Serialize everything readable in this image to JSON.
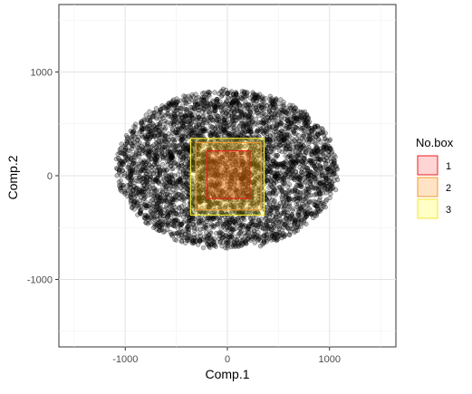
{
  "chart_data": {
    "type": "scatter",
    "title": "",
    "xlabel": "Comp.1",
    "ylabel": "Comp.2",
    "xlim": [
      -1650,
      1650
    ],
    "ylim": [
      -1650,
      1650
    ],
    "x_ticks": [
      -1000,
      0,
      1000
    ],
    "y_ticks": [
      -1000,
      0,
      1000
    ],
    "x_tick_labels": [
      "-1000",
      "0",
      "1000"
    ],
    "y_tick_labels": [
      "-1000",
      "0",
      "1000"
    ],
    "grid": true,
    "legend_position": "right",
    "point_color": "#000000",
    "point_fill_opacity": 0.25,
    "point_cloud": {
      "description_hidden": true,
      "n_points": 4200,
      "center": [
        0,
        80
      ],
      "x_range": [
        -1150,
        1100
      ],
      "y_range": [
        -950,
        870
      ],
      "seed": 7
    },
    "boxes": [
      {
        "name": "1",
        "xmin": -200,
        "xmax": 220,
        "ymin": -220,
        "ymax": 240,
        "fill": "#ff0000",
        "stroke": "#e8211c",
        "fill_opacity": 0.18
      },
      {
        "name": "2",
        "xmin": -310,
        "xmax": 330,
        "ymin": -330,
        "ymax": 320,
        "fill": "#ff8c00",
        "stroke": "#f39a32",
        "fill_opacity": 0.2
      },
      {
        "name": "3",
        "xmin": -360,
        "xmax": 360,
        "ymin": -380,
        "ymax": 360,
        "fill": "#ffff00",
        "stroke": "#f2e634",
        "fill_opacity": 0.2
      }
    ],
    "legend": {
      "title": "No.box",
      "entries": [
        {
          "label": "1",
          "fill": "#ffd4d4",
          "stroke": "#e8211c"
        },
        {
          "label": "2",
          "fill": "#ffe3c4",
          "stroke": "#f39a32"
        },
        {
          "label": "3",
          "fill": "#ffffc6",
          "stroke": "#f2e634"
        }
      ]
    }
  }
}
